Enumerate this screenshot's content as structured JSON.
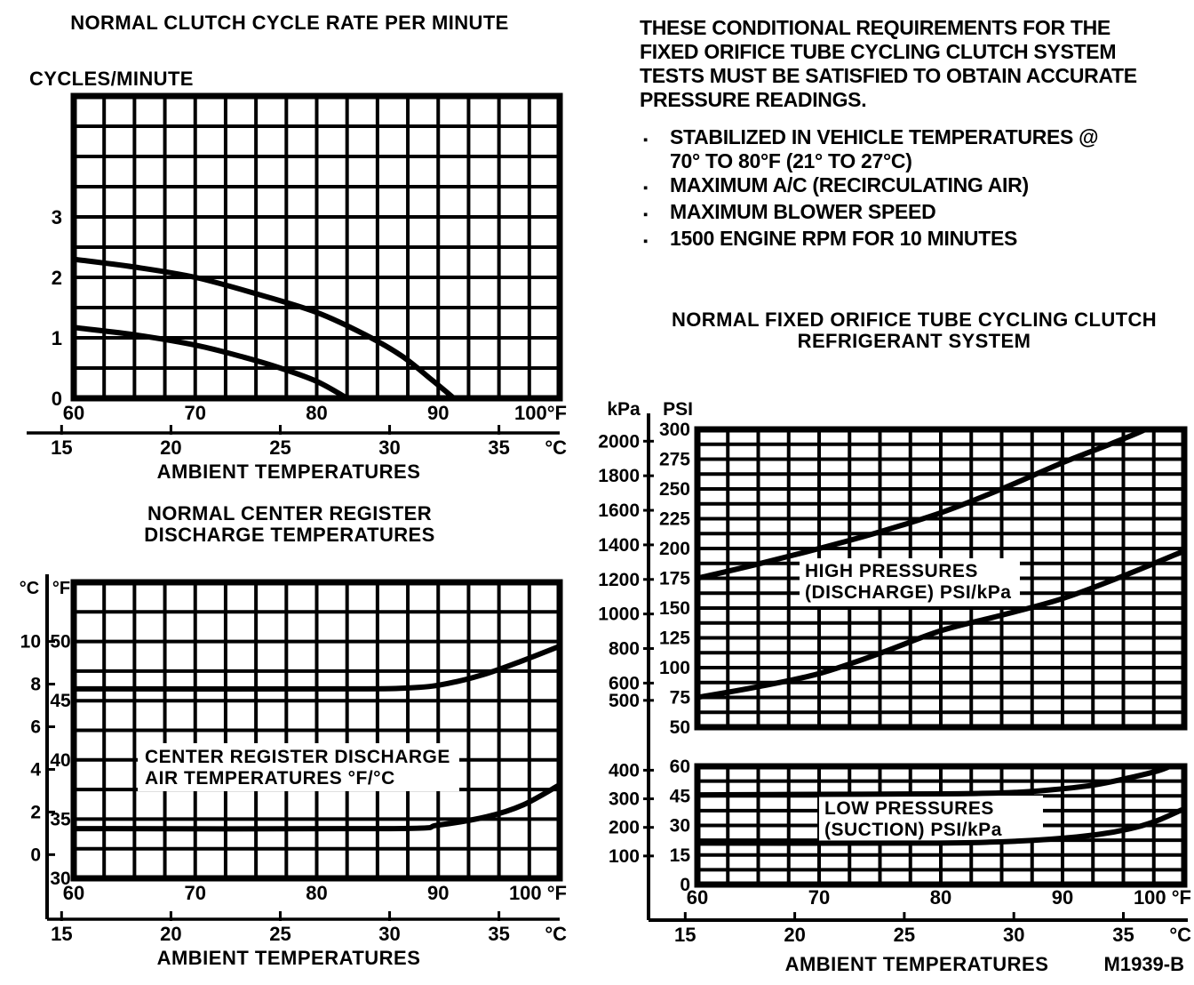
{
  "page": {
    "background": "#ffffff",
    "ink": "#000000"
  },
  "conditional_requirements": {
    "intro_lines": [
      "THESE CONDITIONAL REQUIREMENTS FOR THE",
      "FIXED ORIFICE TUBE CYCLING CLUTCH SYSTEM",
      "TESTS MUST BE SATISFIED TO OBTAIN ACCURATE",
      "PRESSURE READINGS."
    ],
    "bullets": [
      {
        "lines": [
          "STABILIZED IN VEHICLE TEMPERATURES @",
          "70° TO 80°F (21° TO 27°C)"
        ]
      },
      {
        "lines": [
          "MAXIMUM A/C (RECIRCULATING AIR)"
        ]
      },
      {
        "lines": [
          "MAXIMUM BLOWER SPEED"
        ]
      },
      {
        "lines": [
          "1500 ENGINE RPM FOR 10 MINUTES"
        ]
      }
    ]
  },
  "figure_code": "M1939-B",
  "chart_data": [
    {
      "id": "clutch-cycle-rate",
      "type": "line",
      "title": "NORMAL CLUTCH CYCLE RATE PER MINUTE",
      "y_axis_label": "CYCLES/MINUTE",
      "x_axis_label": "AMBIENT TEMPERATURES",
      "x_range_f": [
        60,
        100
      ],
      "x_ticks_f": [
        60,
        70,
        80,
        90,
        100
      ],
      "x_tick_labels_f": [
        "60",
        "70",
        "80",
        "90",
        "100°F"
      ],
      "x_ticks_c": [
        15,
        20,
        25,
        30,
        35
      ],
      "x_unit_c": "°C",
      "y_range": [
        0,
        5
      ],
      "y_ticks": [
        3,
        2,
        1,
        0
      ],
      "grid_minor_x_f": 2.5,
      "grid_minor_y": 0.5,
      "grid": true,
      "series": [
        {
          "name": "upper-cycle-rate-limit",
          "points": [
            [
              60,
              2.3
            ],
            [
              65,
              2.17
            ],
            [
              70,
              2.0
            ],
            [
              75,
              1.73
            ],
            [
              80,
              1.42
            ],
            [
              84,
              1.05
            ],
            [
              87,
              0.7
            ],
            [
              89.5,
              0.3
            ],
            [
              91.3,
              0
            ]
          ]
        },
        {
          "name": "lower-cycle-rate-limit",
          "points": [
            [
              60,
              1.17
            ],
            [
              65,
              1.05
            ],
            [
              70,
              0.88
            ],
            [
              74,
              0.68
            ],
            [
              77,
              0.5
            ],
            [
              80,
              0.28
            ],
            [
              82.5,
              0
            ]
          ]
        }
      ]
    },
    {
      "id": "center-register-discharge",
      "type": "line",
      "title_lines": [
        "NORMAL CENTER REGISTER",
        "DISCHARGE TEMPERATURES"
      ],
      "x_axis_label": "AMBIENT TEMPERATURES",
      "y_unit_left": "°C",
      "y_unit_right": "°F",
      "x_range_f": [
        60,
        100
      ],
      "x_ticks_f": [
        60,
        70,
        80,
        90,
        100
      ],
      "x_tick_labels_f": [
        "60",
        "70",
        "80",
        "90",
        "100 °F"
      ],
      "x_ticks_c": [
        15,
        20,
        25,
        30,
        35
      ],
      "x_unit_c": "°C",
      "y_range_f": [
        30,
        55
      ],
      "y_ticks_f": [
        50,
        45,
        40,
        35,
        30
      ],
      "y_ticks_c": [
        10,
        8,
        6,
        4,
        2,
        0
      ],
      "grid_minor_x_f": 2.5,
      "grid_minor_y_f": 2.5,
      "grid": true,
      "annotation_lines": [
        "CENTER REGISTER DISCHARGE",
        "AIR TEMPERATURES °F/°C"
      ],
      "series": [
        {
          "name": "upper-discharge-temp-limit",
          "points": [
            [
              60,
              46
            ],
            [
              82,
              46
            ],
            [
              88,
              46.1
            ],
            [
              91,
              46.5
            ],
            [
              94,
              47.3
            ],
            [
              97,
              48.4
            ],
            [
              100,
              49.6
            ]
          ]
        },
        {
          "name": "lower-discharge-temp-limit",
          "points": [
            [
              60,
              34.2
            ],
            [
              86,
              34.2
            ],
            [
              90,
              34.5
            ],
            [
              94,
              35.2
            ],
            [
              97,
              36.2
            ],
            [
              100,
              37.9
            ]
          ]
        }
      ]
    },
    {
      "id": "refrigerant-system-pressures",
      "type": "line",
      "title_lines": [
        "NORMAL FIXED ORIFICE TUBE CYCLING CLUTCH",
        "REFRIGERANT SYSTEM"
      ],
      "x_axis_label": "AMBIENT TEMPERATURES",
      "y_unit_left": "kPa",
      "y_unit_right": "PSI",
      "x_range_f": [
        60,
        100
      ],
      "x_ticks_f": [
        60,
        70,
        80,
        90,
        100
      ],
      "x_tick_labels_f": [
        "60",
        "70",
        "80",
        "90",
        "100 °F"
      ],
      "x_ticks_c": [
        15,
        20,
        25,
        30,
        35
      ],
      "x_unit_c": "°C",
      "kpa_per_psi": 6.894757,
      "grid": true,
      "high_pressure_panel": {
        "label_lines": [
          "HIGH PRESSURES",
          "(DISCHARGE) PSI/kPa"
        ],
        "psi_range": [
          50,
          300
        ],
        "psi_ticks": [
          300,
          275,
          250,
          225,
          200,
          175,
          150,
          125,
          100,
          75,
          50
        ],
        "kpa_ticks": [
          2000,
          1800,
          1600,
          1400,
          1200,
          1000,
          800,
          600,
          500
        ],
        "grid_minor_psi": 12.5,
        "series": [
          {
            "name": "discharge-upper-limit",
            "points": [
              [
                60,
                175
              ],
              [
                65,
                187
              ],
              [
                70,
                200
              ],
              [
                75,
                214
              ],
              [
                80,
                230
              ],
              [
                85,
                250
              ],
              [
                90,
                272
              ],
              [
                94,
                288
              ],
              [
                97,
                301
              ],
              [
                98.5,
                313
              ]
            ]
          },
          {
            "name": "discharge-lower-limit",
            "points": [
              [
                60,
                75
              ],
              [
                65,
                84
              ],
              [
                70,
                95
              ],
              [
                75,
                112
              ],
              [
                80,
                131
              ],
              [
                85,
                144
              ],
              [
                90,
                158
              ],
              [
                95,
                177
              ],
              [
                100,
                198
              ]
            ]
          }
        ]
      },
      "low_pressure_panel": {
        "label_lines": [
          "LOW PRESSURES",
          "(SUCTION) PSI/kPa"
        ],
        "psi_range": [
          0,
          60
        ],
        "psi_ticks": [
          60,
          45,
          30,
          15,
          0
        ],
        "kpa_ticks": [
          400,
          300,
          200,
          100
        ],
        "grid_minor_psi": 7.5,
        "series": [
          {
            "name": "suction-upper-limit",
            "points": [
              [
                60,
                45.5
              ],
              [
                70,
                45.8
              ],
              [
                80,
                46
              ],
              [
                85,
                46.5
              ],
              [
                88,
                47.5
              ],
              [
                92,
                50
              ],
              [
                95,
                53.5
              ],
              [
                98,
                58
              ],
              [
                99.5,
                62
              ]
            ]
          },
          {
            "name": "suction-lower-limit",
            "points": [
              [
                60,
                21
              ],
              [
                78,
                21
              ],
              [
                84,
                21.5
              ],
              [
                89,
                23
              ],
              [
                93,
                25.5
              ],
              [
                96,
                29
              ],
              [
                98,
                33
              ],
              [
                100,
                38.5
              ]
            ]
          }
        ]
      }
    }
  ]
}
